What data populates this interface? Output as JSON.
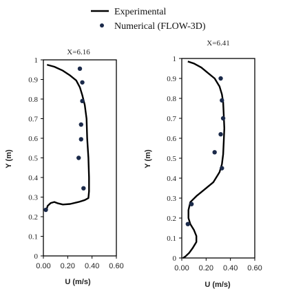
{
  "legend": {
    "experimental_label": "Experimental",
    "numerical_label": "Numerical (FLOW-3D)"
  },
  "chart_data": [
    {
      "type": "line+scatter",
      "title": "X=6.16",
      "xlabel": "U (m/s)",
      "ylabel": "Y (m)",
      "xlim": [
        0,
        0.6
      ],
      "ylim": [
        0,
        1
      ],
      "xticks": [
        "0.00",
        "0.20",
        "0.40",
        "0.60"
      ],
      "yticks": [
        "0",
        "0.1",
        "0.2",
        "0.3",
        "0.4",
        "0.5",
        "0.6",
        "0.7",
        "0.8",
        "0.9",
        "1"
      ],
      "grid": false,
      "series": [
        {
          "name": "Experimental",
          "kind": "line",
          "color": "#000000",
          "points": [
            [
              0.03,
              0.975
            ],
            [
              0.09,
              0.965
            ],
            [
              0.16,
              0.945
            ],
            [
              0.22,
              0.92
            ],
            [
              0.27,
              0.895
            ],
            [
              0.3,
              0.86
            ],
            [
              0.32,
              0.82
            ],
            [
              0.34,
              0.77
            ],
            [
              0.355,
              0.7
            ],
            [
              0.36,
              0.6
            ],
            [
              0.37,
              0.5
            ],
            [
              0.375,
              0.4
            ],
            [
              0.375,
              0.33
            ],
            [
              0.37,
              0.295
            ],
            [
              0.34,
              0.285
            ],
            [
              0.29,
              0.275
            ],
            [
              0.22,
              0.265
            ],
            [
              0.16,
              0.262
            ],
            [
              0.12,
              0.268
            ],
            [
              0.09,
              0.275
            ],
            [
              0.06,
              0.27
            ],
            [
              0.035,
              0.255
            ],
            [
              0.025,
              0.235
            ]
          ]
        },
        {
          "name": "Numerical (FLOW-3D)",
          "kind": "scatter",
          "color": "#1b2a4a",
          "points": [
            [
              0.3,
              0.955
            ],
            [
              0.32,
              0.885
            ],
            [
              0.32,
              0.79
            ],
            [
              0.31,
              0.67
            ],
            [
              0.31,
              0.595
            ],
            [
              0.29,
              0.5
            ],
            [
              0.33,
              0.345
            ],
            [
              0.02,
              0.235
            ]
          ]
        }
      ]
    },
    {
      "type": "line+scatter",
      "title": "X=6.41",
      "xlabel": "U (m/s)",
      "ylabel": "Y (m)",
      "xlim": [
        0,
        0.6
      ],
      "ylim": [
        0,
        1
      ],
      "xticks": [
        "0.00",
        "0.20",
        "0.40",
        "0.60"
      ],
      "yticks": [
        "0",
        "0.1",
        "0.2",
        "0.3",
        "0.4",
        "0.5",
        "0.6",
        "0.7",
        "0.8",
        "0.9",
        "1"
      ],
      "grid": false,
      "series": [
        {
          "name": "Experimental",
          "kind": "line",
          "color": "#000000",
          "points": [
            [
              0.05,
              0.985
            ],
            [
              0.1,
              0.975
            ],
            [
              0.16,
              0.955
            ],
            [
              0.22,
              0.925
            ],
            [
              0.27,
              0.9
            ],
            [
              0.31,
              0.86
            ],
            [
              0.33,
              0.82
            ],
            [
              0.34,
              0.78
            ],
            [
              0.345,
              0.72
            ],
            [
              0.35,
              0.65
            ],
            [
              0.345,
              0.58
            ],
            [
              0.34,
              0.52
            ],
            [
              0.33,
              0.47
            ],
            [
              0.31,
              0.43
            ],
            [
              0.26,
              0.38
            ],
            [
              0.18,
              0.34
            ],
            [
              0.12,
              0.31
            ],
            [
              0.07,
              0.28
            ],
            [
              0.055,
              0.24
            ],
            [
              0.055,
              0.2
            ],
            [
              0.07,
              0.17
            ],
            [
              0.1,
              0.14
            ],
            [
              0.12,
              0.11
            ],
            [
              0.12,
              0.08
            ],
            [
              0.09,
              0.05
            ],
            [
              0.06,
              0.025
            ],
            [
              0.03,
              0.008
            ],
            [
              0.01,
              0.0
            ]
          ]
        },
        {
          "name": "Numerical (FLOW-3D)",
          "kind": "scatter",
          "color": "#1b2a4a",
          "points": [
            [
              0.32,
              0.9
            ],
            [
              0.33,
              0.79
            ],
            [
              0.34,
              0.7
            ],
            [
              0.32,
              0.62
            ],
            [
              0.27,
              0.53
            ],
            [
              0.33,
              0.45
            ],
            [
              0.08,
              0.27
            ],
            [
              0.05,
              0.17
            ]
          ]
        }
      ]
    }
  ]
}
